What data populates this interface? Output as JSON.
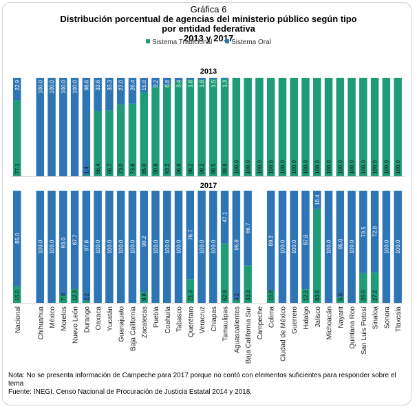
{
  "header": {
    "kicker": "Gráfica 6",
    "title_line1": "Distribución porcentual de agencias del ministerio público según tipo",
    "title_line2": "por entidad federativa",
    "title_line3": "2013 y 2017"
  },
  "legend": [
    {
      "label": "Sistema Tradicional",
      "color": "#1f9c77"
    },
    {
      "label": "Sistema Oral",
      "color": "#2e75b6"
    }
  ],
  "notes": {
    "nota": "Nota: No se presenta información de Campeche para 2017 porque no contó con elementos suficientes para responder sobre el tema",
    "fuente": "Fuente: INEGI. Censo Nacional de Procuración de Justicia Estatal 2014 y 2018."
  },
  "chart_data": {
    "type": "bar",
    "stacked": true,
    "percent": true,
    "title": "Distribución porcentual de agencias del ministerio público según tipo por entidad federativa, 2013 y 2017",
    "legend_position": "top",
    "ylim": [
      0,
      100
    ],
    "categories": [
      "Nacional",
      "",
      "Chihuahua",
      "México",
      "Morelos",
      "Nuevo León",
      "Durango",
      "Oaxaca",
      "Yucatán",
      "Guanajuato",
      "Baja California",
      "Zacatecas",
      "Puebla",
      "Coahuila",
      "Tabasco",
      "Querétaro",
      "Veracruz",
      "Chiapas",
      "Tamaulipas",
      "Aguascalientes",
      "Baja California Sur",
      "Campeche",
      "Colima",
      "Ciudad de México",
      "Guerrero",
      "Hidalgo",
      "Jalisco",
      "Michoacán",
      "Nayarit",
      "Quintana Roo",
      "San Luis Potosí",
      "Sinaloa",
      "Sonora",
      "Tlaxcala"
    ],
    "panels": [
      {
        "title": "2013",
        "series": [
          {
            "name": "Sistema Tradicional",
            "color": "#1f9c77",
            "values": [
              77.1,
              null,
              0,
              0,
              0,
              0,
              1.4,
              66.4,
              66.7,
              73.0,
              73.6,
              85.0,
              90.8,
              93.2,
              96.6,
              98.2,
              98.2,
              98.5,
              98.8,
              100.0,
              100.0,
              100.0,
              100.0,
              100.0,
              100.0,
              100.0,
              100.0,
              100.0,
              100.0,
              100.0,
              100.0,
              100.0,
              100.0,
              100.0
            ]
          },
          {
            "name": "Sistema Oral",
            "color": "#2e75b6",
            "values": [
              22.9,
              null,
              100.0,
              100.0,
              100.0,
              100.0,
              98.6,
              33.6,
              33.3,
              27.0,
              26.4,
              15.0,
              9.2,
              6.8,
              3.4,
              1.8,
              1.8,
              1.5,
              1.3,
              0,
              0,
              0,
              0,
              0,
              0,
              0,
              0,
              0,
              0,
              0,
              0,
              0,
              0,
              0
            ]
          }
        ]
      },
      {
        "title": "2017",
        "series": [
          {
            "name": "Sistema Tradicional",
            "color": "#1f9c77",
            "values": [
              15.0,
              null,
              0,
              0,
              7.0,
              12.3,
              2.2,
              0,
              0,
              0,
              0,
              9.8,
              0,
              0,
              0,
              21.3,
              0,
              0,
              52.9,
              3.2,
              33.3,
              null,
              10.8,
              0,
              0,
              12.2,
              83.6,
              0,
              5.0,
              0,
              26.5,
              27.2,
              0,
              0
            ]
          },
          {
            "name": "Sistema Oral",
            "color": "#2e75b6",
            "values": [
              85.0,
              null,
              100.0,
              100.0,
              93.0,
              87.7,
              97.8,
              100.0,
              100.0,
              100.0,
              100.0,
              90.2,
              100.0,
              100.0,
              100.0,
              78.7,
              100.0,
              100.0,
              47.1,
              96.8,
              66.7,
              null,
              89.2,
              100.0,
              100.0,
              87.8,
              16.4,
              100.0,
              95.0,
              100.0,
              73.5,
              72.8,
              100.0,
              100.0
            ]
          }
        ]
      }
    ]
  }
}
